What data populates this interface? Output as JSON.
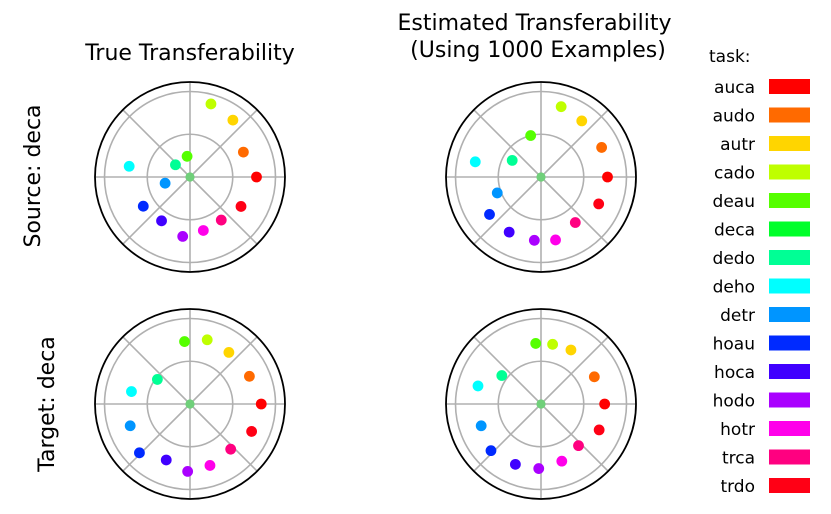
{
  "figure": {
    "column_titles": [
      "True Transferability",
      "Estimated Transferability\n(Using 1000 Examples)"
    ],
    "row_labels": [
      "Source: deca",
      "Target: deca"
    ]
  },
  "legend": {
    "title": "task:",
    "items": [
      {
        "label": "auca",
        "color": "#ff0000"
      },
      {
        "label": "audo",
        "color": "#ff6a00"
      },
      {
        "label": "autr",
        "color": "#ffd500"
      },
      {
        "label": "cado",
        "color": "#bfff00"
      },
      {
        "label": "deau",
        "color": "#55ff00"
      },
      {
        "label": "deca",
        "color": "#00ff2a"
      },
      {
        "label": "dedo",
        "color": "#00ff95"
      },
      {
        "label": "deho",
        "color": "#00ffff"
      },
      {
        "label": "detr",
        "color": "#0095ff"
      },
      {
        "label": "hoau",
        "color": "#002aff"
      },
      {
        "label": "hoca",
        "color": "#4000ff"
      },
      {
        "label": "hodo",
        "color": "#aa00ff"
      },
      {
        "label": "hotr",
        "color": "#ff00ea"
      },
      {
        "label": "trca",
        "color": "#ff0080"
      },
      {
        "label": "trdo",
        "color": "#ff0015"
      }
    ]
  },
  "chart_data": [
    {
      "type": "scatter",
      "title": "True Transferability",
      "row_label": "Source: deca",
      "center_task": "deca",
      "rlim": [
        0,
        1
      ],
      "grid": true,
      "points": [
        {
          "task": "auca",
          "r": 0.7,
          "theta_deg": 0
        },
        {
          "task": "trdo",
          "r": 0.62,
          "theta_deg": -30
        },
        {
          "task": "trca",
          "r": 0.56,
          "theta_deg": -54
        },
        {
          "task": "hotr",
          "r": 0.58,
          "theta_deg": -76
        },
        {
          "task": "hodo",
          "r": 0.63,
          "theta_deg": -97
        },
        {
          "task": "hoca",
          "r": 0.55,
          "theta_deg": -123
        },
        {
          "task": "hoau",
          "r": 0.58,
          "theta_deg": -148
        },
        {
          "task": "detr",
          "r": 0.27,
          "theta_deg": -166
        },
        {
          "task": "deho",
          "r": 0.65,
          "theta_deg": 170
        },
        {
          "task": "dedo",
          "r": 0.2,
          "theta_deg": 140
        },
        {
          "task": "deca",
          "r": 0.0,
          "theta_deg": 0
        },
        {
          "task": "deau",
          "r": 0.22,
          "theta_deg": 98
        },
        {
          "task": "cado",
          "r": 0.8,
          "theta_deg": 74
        },
        {
          "task": "autr",
          "r": 0.75,
          "theta_deg": 53
        },
        {
          "task": "audo",
          "r": 0.62,
          "theta_deg": 25
        }
      ]
    },
    {
      "type": "scatter",
      "title": "Estimated Transferability (Using 1000 Examples)",
      "row_label": "Source: deca",
      "center_task": "deca",
      "rlim": [
        0,
        1
      ],
      "grid": true,
      "points": [
        {
          "task": "auca",
          "r": 0.7,
          "theta_deg": 0
        },
        {
          "task": "trdo",
          "r": 0.67,
          "theta_deg": -25
        },
        {
          "task": "trca",
          "r": 0.6,
          "theta_deg": -53
        },
        {
          "task": "hotr",
          "r": 0.68,
          "theta_deg": -77
        },
        {
          "task": "hodo",
          "r": 0.67,
          "theta_deg": -96
        },
        {
          "task": "hoca",
          "r": 0.67,
          "theta_deg": -120
        },
        {
          "task": "hoau",
          "r": 0.67,
          "theta_deg": -144
        },
        {
          "task": "detr",
          "r": 0.49,
          "theta_deg": -160
        },
        {
          "task": "deho",
          "r": 0.71,
          "theta_deg": 167
        },
        {
          "task": "dedo",
          "r": 0.35,
          "theta_deg": 150
        },
        {
          "task": "deca",
          "r": 0.0,
          "theta_deg": 0
        },
        {
          "task": "deau",
          "r": 0.45,
          "theta_deg": 104
        },
        {
          "task": "cado",
          "r": 0.77,
          "theta_deg": 74
        },
        {
          "task": "autr",
          "r": 0.73,
          "theta_deg": 54
        },
        {
          "task": "audo",
          "r": 0.71,
          "theta_deg": 26
        }
      ]
    },
    {
      "type": "scatter",
      "title": "True Transferability",
      "row_label": "Target: deca",
      "center_task": "deca",
      "rlim": [
        0,
        1
      ],
      "grid": true,
      "points": [
        {
          "task": "auca",
          "r": 0.75,
          "theta_deg": 0
        },
        {
          "task": "trdo",
          "r": 0.71,
          "theta_deg": -24
        },
        {
          "task": "trca",
          "r": 0.64,
          "theta_deg": -48
        },
        {
          "task": "hotr",
          "r": 0.68,
          "theta_deg": -72
        },
        {
          "task": "hodo",
          "r": 0.71,
          "theta_deg": -92
        },
        {
          "task": "hoca",
          "r": 0.64,
          "theta_deg": -113
        },
        {
          "task": "hoau",
          "r": 0.74,
          "theta_deg": -136
        },
        {
          "task": "detr",
          "r": 0.67,
          "theta_deg": -160
        },
        {
          "task": "deho",
          "r": 0.63,
          "theta_deg": 168
        },
        {
          "task": "dedo",
          "r": 0.43,
          "theta_deg": 143
        },
        {
          "task": "deca",
          "r": 0.0,
          "theta_deg": 0
        },
        {
          "task": "deau",
          "r": 0.66,
          "theta_deg": 95
        },
        {
          "task": "cado",
          "r": 0.7,
          "theta_deg": 75
        },
        {
          "task": "autr",
          "r": 0.68,
          "theta_deg": 53
        },
        {
          "task": "audo",
          "r": 0.69,
          "theta_deg": 25
        }
      ]
    },
    {
      "type": "scatter",
      "title": "Estimated Transferability (Using 1000 Examples)",
      "row_label": "Target: deca",
      "center_task": "deca",
      "rlim": [
        0,
        1
      ],
      "grid": true,
      "points": [
        {
          "task": "auca",
          "r": 0.67,
          "theta_deg": 0
        },
        {
          "task": "trdo",
          "r": 0.67,
          "theta_deg": -24
        },
        {
          "task": "trca",
          "r": 0.59,
          "theta_deg": -48
        },
        {
          "task": "hotr",
          "r": 0.64,
          "theta_deg": -70
        },
        {
          "task": "hodo",
          "r": 0.68,
          "theta_deg": -92
        },
        {
          "task": "hoca",
          "r": 0.69,
          "theta_deg": -113
        },
        {
          "task": "hoau",
          "r": 0.72,
          "theta_deg": -137
        },
        {
          "task": "detr",
          "r": 0.67,
          "theta_deg": -160
        },
        {
          "task": "deho",
          "r": 0.69,
          "theta_deg": 164
        },
        {
          "task": "dedo",
          "r": 0.51,
          "theta_deg": 144
        },
        {
          "task": "deca",
          "r": 0.0,
          "theta_deg": 0
        },
        {
          "task": "deau",
          "r": 0.64,
          "theta_deg": 95
        },
        {
          "task": "cado",
          "r": 0.64,
          "theta_deg": 79
        },
        {
          "task": "autr",
          "r": 0.65,
          "theta_deg": 61
        },
        {
          "task": "audo",
          "r": 0.63,
          "theta_deg": 27
        }
      ]
    }
  ]
}
